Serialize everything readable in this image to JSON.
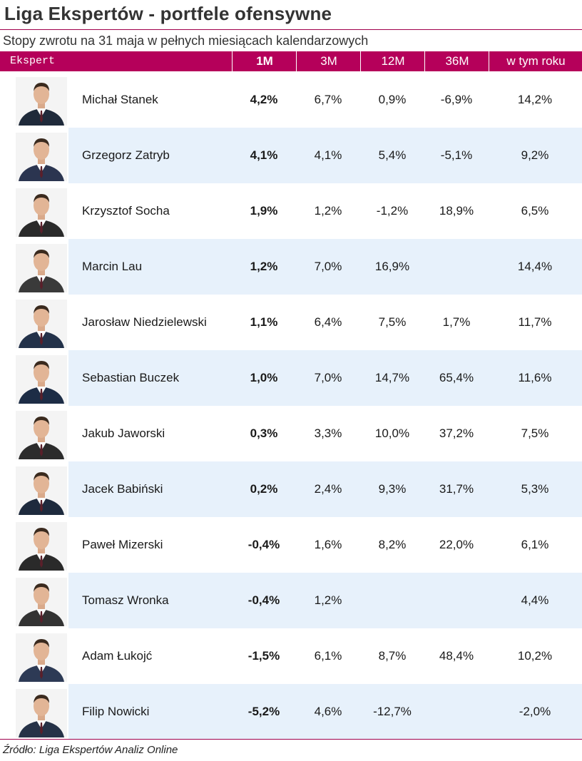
{
  "title": "Liga Ekspertów - portfele ofensywne",
  "subtitle": "Stopy zwrotu na 31 maja w pełnych miesiącach kalendarzowych",
  "footer": "Źródło: Liga Ekspertów Analiz Online",
  "colors": {
    "header_bg": "#b5005a",
    "rule": "#a0004c",
    "alt_row": "#e7f1fb"
  },
  "chart_data": {
    "type": "table",
    "columns": [
      "Ekspert",
      "1M",
      "3M",
      "12M",
      "36M",
      "w tym roku"
    ],
    "rows": [
      {
        "name": "Michał Stanek",
        "m1": "4,2%",
        "m3": "6,7%",
        "m12": "0,9%",
        "m36": "-6,9%",
        "ytd": "14,2%"
      },
      {
        "name": "Grzegorz Zatryb",
        "m1": "4,1%",
        "m3": "4,1%",
        "m12": "5,4%",
        "m36": "-5,1%",
        "ytd": "9,2%"
      },
      {
        "name": "Krzysztof Socha",
        "m1": "1,9%",
        "m3": "1,2%",
        "m12": "-1,2%",
        "m36": "18,9%",
        "ytd": "6,5%"
      },
      {
        "name": "Marcin Lau",
        "m1": "1,2%",
        "m3": "7,0%",
        "m12": "16,9%",
        "m36": "",
        "ytd": "14,4%"
      },
      {
        "name": "Jarosław Niedzielewski",
        "m1": "1,1%",
        "m3": "6,4%",
        "m12": "7,5%",
        "m36": "1,7%",
        "ytd": "11,7%"
      },
      {
        "name": "Sebastian Buczek",
        "m1": "1,0%",
        "m3": "7,0%",
        "m12": "14,7%",
        "m36": "65,4%",
        "ytd": "11,6%"
      },
      {
        "name": "Jakub Jaworski",
        "m1": "0,3%",
        "m3": "3,3%",
        "m12": "10,0%",
        "m36": "37,2%",
        "ytd": "7,5%"
      },
      {
        "name": "Jacek Babiński",
        "m1": "0,2%",
        "m3": "2,4%",
        "m12": "9,3%",
        "m36": "31,7%",
        "ytd": "5,3%"
      },
      {
        "name": "Paweł Mizerski",
        "m1": "-0,4%",
        "m3": "1,6%",
        "m12": "8,2%",
        "m36": "22,0%",
        "ytd": "6,1%"
      },
      {
        "name": "Tomasz Wronka",
        "m1": "-0,4%",
        "m3": "1,2%",
        "m12": "",
        "m36": "",
        "ytd": "4,4%"
      },
      {
        "name": "Adam Łukojć",
        "m1": "-1,5%",
        "m3": "6,1%",
        "m12": "8,7%",
        "m36": "48,4%",
        "ytd": "10,2%"
      },
      {
        "name": "Filip Nowicki",
        "m1": "-5,2%",
        "m3": "4,6%",
        "m12": "-12,7%",
        "m36": "",
        "ytd": "-2,0%"
      }
    ]
  }
}
